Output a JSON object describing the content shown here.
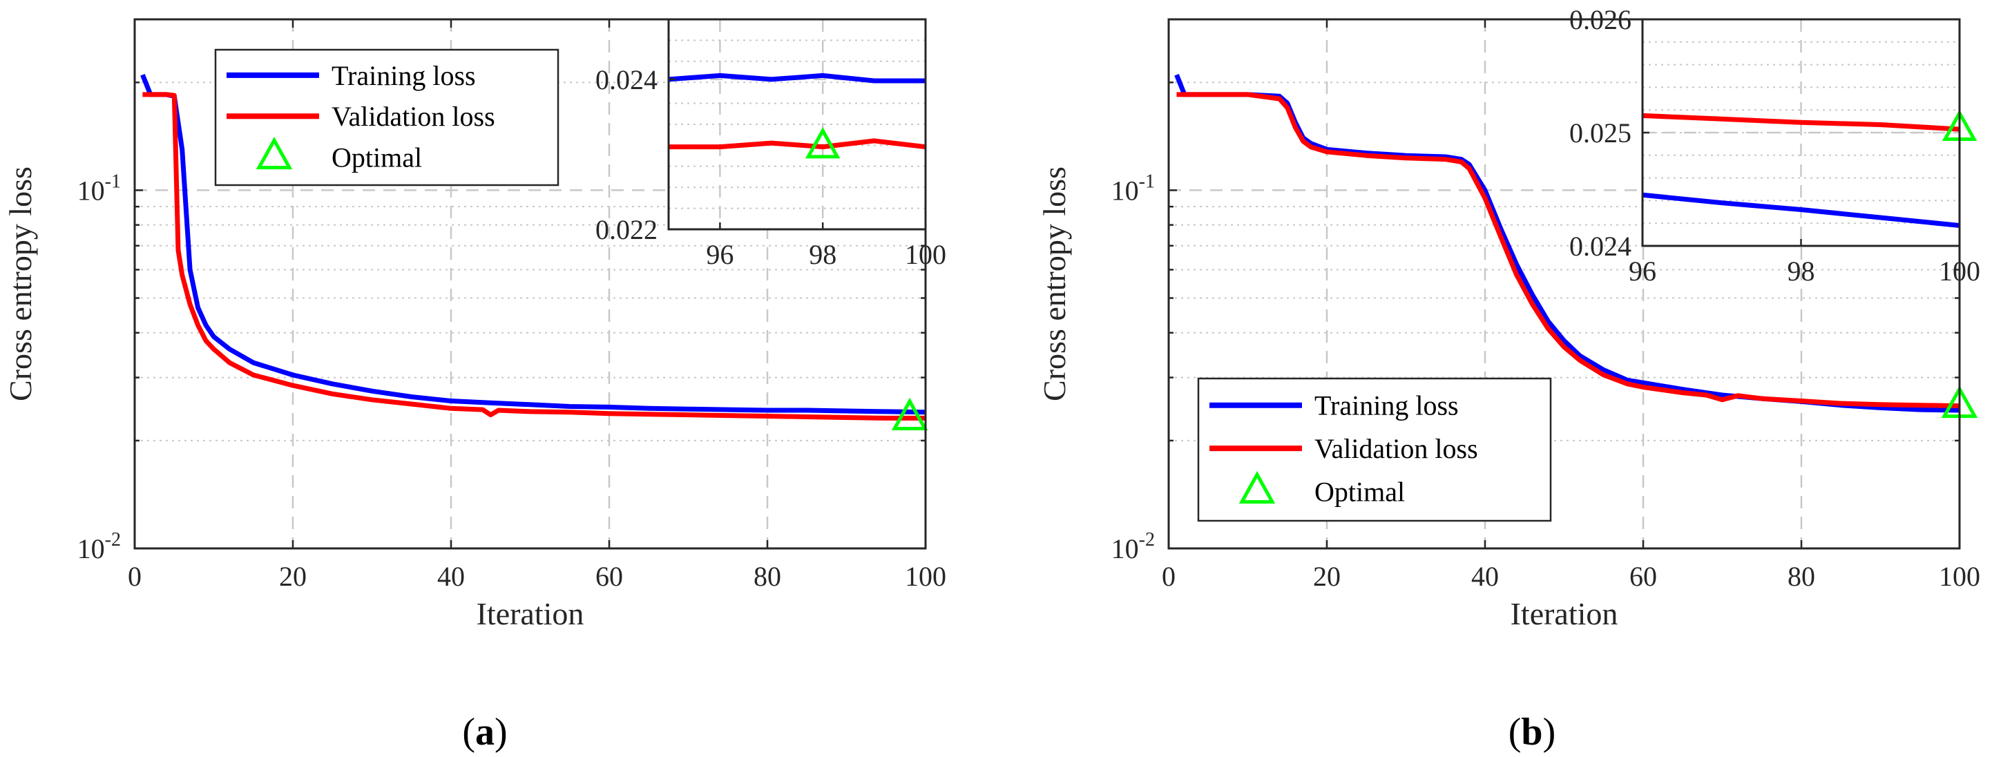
{
  "chart_data": [
    {
      "type": "line",
      "panel": "a",
      "caption": "(a)",
      "xlabel": "Iteration",
      "ylabel": "Cross entropy loss",
      "yscale": "log",
      "xlim": [
        0,
        100
      ],
      "ylim": [
        0.01,
        0.3
      ],
      "xticks": [
        0,
        20,
        40,
        60,
        80,
        100
      ],
      "xtick_labels": [
        "0",
        "20",
        "40",
        "60",
        "80",
        "100"
      ],
      "ytick_labels": [
        {
          "base": "10",
          "exp": "-2"
        },
        {
          "base": "10",
          "exp": "-1"
        }
      ],
      "grid": true,
      "legend": {
        "location": "top-left",
        "entries": [
          "Training loss",
          "Validation loss",
          "Optimal"
        ]
      },
      "series": [
        {
          "name": "Training loss",
          "color": "#0000ff",
          "x": [
            1,
            2,
            3,
            4,
            5,
            6,
            7,
            8,
            9,
            10,
            12,
            15,
            20,
            25,
            30,
            35,
            40,
            45,
            50,
            55,
            60,
            65,
            70,
            75,
            80,
            85,
            90,
            95,
            100
          ],
          "y": [
            0.21,
            0.185,
            0.185,
            0.185,
            0.183,
            0.13,
            0.06,
            0.047,
            0.042,
            0.039,
            0.036,
            0.033,
            0.0305,
            0.0288,
            0.0275,
            0.0265,
            0.0258,
            0.0255,
            0.0252,
            0.0249,
            0.0248,
            0.0246,
            0.0245,
            0.0244,
            0.0243,
            0.0243,
            0.0242,
            0.0241,
            0.024
          ]
        },
        {
          "name": "Validation loss",
          "color": "#ff0000",
          "x": [
            1,
            2,
            3,
            4,
            5,
            5.5,
            6,
            7,
            8,
            9,
            10,
            12,
            15,
            20,
            25,
            30,
            35,
            40,
            44,
            45,
            46,
            50,
            55,
            60,
            65,
            70,
            75,
            80,
            85,
            90,
            95,
            98,
            100
          ],
          "y": [
            0.185,
            0.185,
            0.185,
            0.185,
            0.184,
            0.068,
            0.058,
            0.048,
            0.042,
            0.038,
            0.036,
            0.033,
            0.0305,
            0.0285,
            0.027,
            0.026,
            0.0253,
            0.0246,
            0.0244,
            0.0236,
            0.0243,
            0.0241,
            0.024,
            0.0238,
            0.0237,
            0.0236,
            0.0235,
            0.0234,
            0.0233,
            0.0232,
            0.0231,
            0.0231,
            0.0231
          ]
        },
        {
          "name": "Optimal",
          "color": "#00ff00",
          "marker": "triangle",
          "x": [
            98
          ],
          "y": [
            0.0231
          ]
        }
      ],
      "inset": {
        "xlim": [
          95,
          100
        ],
        "ylim": [
          0.022,
          0.0248
        ],
        "xticks": [
          96,
          98,
          100
        ],
        "xtick_labels": [
          "96",
          "98",
          "100"
        ],
        "yticks": [
          0.022,
          0.024
        ],
        "ytick_labels": [
          "0.022",
          "0.024"
        ],
        "series": [
          {
            "name": "Training loss",
            "x": [
              95,
              96,
              97,
              98,
              99,
              100
            ],
            "y": [
              0.024,
              0.02405,
              0.024,
              0.02405,
              0.02398,
              0.02398
            ]
          },
          {
            "name": "Validation loss",
            "x": [
              95,
              96,
              97,
              98,
              99,
              100
            ],
            "y": [
              0.0231,
              0.0231,
              0.02315,
              0.0231,
              0.02318,
              0.0231
            ]
          },
          {
            "name": "Optimal",
            "x": [
              98
            ],
            "y": [
              0.0231
            ]
          }
        ]
      }
    },
    {
      "type": "line",
      "panel": "b",
      "caption": "(b)",
      "xlabel": "Iteration",
      "ylabel": "Cross entropy loss",
      "yscale": "log",
      "xlim": [
        0,
        100
      ],
      "ylim": [
        0.01,
        0.3
      ],
      "xticks": [
        0,
        20,
        40,
        60,
        80,
        100
      ],
      "xtick_labels": [
        "0",
        "20",
        "40",
        "60",
        "80",
        "100"
      ],
      "ytick_labels": [
        {
          "base": "10",
          "exp": "-2"
        },
        {
          "base": "10",
          "exp": "-1"
        }
      ],
      "grid": true,
      "legend": {
        "location": "bottom-left",
        "entries": [
          "Training loss",
          "Validation loss",
          "Optimal"
        ]
      },
      "series": [
        {
          "name": "Training loss",
          "color": "#0000ff",
          "x": [
            1,
            2,
            5,
            10,
            14,
            15,
            16,
            17,
            18,
            20,
            25,
            30,
            35,
            37,
            38,
            40,
            42,
            44,
            46,
            48,
            50,
            52,
            55,
            58,
            60,
            65,
            70,
            75,
            80,
            85,
            90,
            95,
            100
          ],
          "y": [
            0.21,
            0.185,
            0.185,
            0.185,
            0.183,
            0.175,
            0.155,
            0.14,
            0.135,
            0.13,
            0.127,
            0.125,
            0.124,
            0.122,
            0.118,
            0.1,
            0.078,
            0.062,
            0.051,
            0.043,
            0.038,
            0.0345,
            0.0315,
            0.0295,
            0.029,
            0.0278,
            0.0268,
            0.0262,
            0.0257,
            0.0251,
            0.0247,
            0.0244,
            0.0243
          ]
        },
        {
          "name": "Validation loss",
          "color": "#ff0000",
          "x": [
            1,
            2,
            5,
            10,
            14,
            15,
            16,
            17,
            18,
            20,
            25,
            30,
            35,
            37,
            38,
            40,
            42,
            44,
            46,
            48,
            50,
            52,
            55,
            58,
            60,
            65,
            68,
            70,
            72,
            75,
            80,
            85,
            90,
            95,
            100
          ],
          "y": [
            0.185,
            0.185,
            0.185,
            0.185,
            0.18,
            0.17,
            0.15,
            0.137,
            0.132,
            0.128,
            0.125,
            0.123,
            0.122,
            0.12,
            0.115,
            0.095,
            0.074,
            0.058,
            0.048,
            0.041,
            0.0365,
            0.0335,
            0.0305,
            0.0288,
            0.0282,
            0.0272,
            0.0268,
            0.026,
            0.0267,
            0.0262,
            0.0258,
            0.0254,
            0.0252,
            0.0251,
            0.025
          ]
        },
        {
          "name": "Optimal",
          "color": "#00ff00",
          "marker": "triangle",
          "x": [
            100
          ],
          "y": [
            0.025
          ]
        }
      ],
      "inset": {
        "xlim": [
          96,
          100
        ],
        "ylim": [
          0.024,
          0.026
        ],
        "xticks": [
          96,
          98,
          100
        ],
        "xtick_labels": [
          "96",
          "98",
          "100"
        ],
        "yticks": [
          0.024,
          0.025,
          0.026
        ],
        "ytick_labels": [
          "0.024",
          "0.025",
          "0.026"
        ],
        "series": [
          {
            "name": "Training loss",
            "x": [
              96,
              97,
              98,
              99,
              100
            ],
            "y": [
              0.02445,
              0.02438,
              0.02432,
              0.02425,
              0.02418
            ]
          },
          {
            "name": "Validation loss",
            "x": [
              96,
              97,
              98,
              99,
              100
            ],
            "y": [
              0.02515,
              0.02512,
              0.02509,
              0.02507,
              0.02503
            ]
          },
          {
            "name": "Optimal",
            "x": [
              100
            ],
            "y": [
              0.02503
            ]
          }
        ]
      }
    }
  ]
}
